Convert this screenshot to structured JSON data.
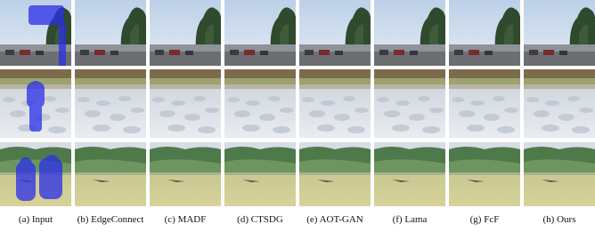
{
  "captions": [
    "(a) Input",
    "(b) EdgeConnect",
    "(c) MADF",
    "(d) CTSDG",
    "(e) AOT-GAN",
    "(f) Lama",
    "(g) FcF",
    "(h) Ours"
  ]
}
